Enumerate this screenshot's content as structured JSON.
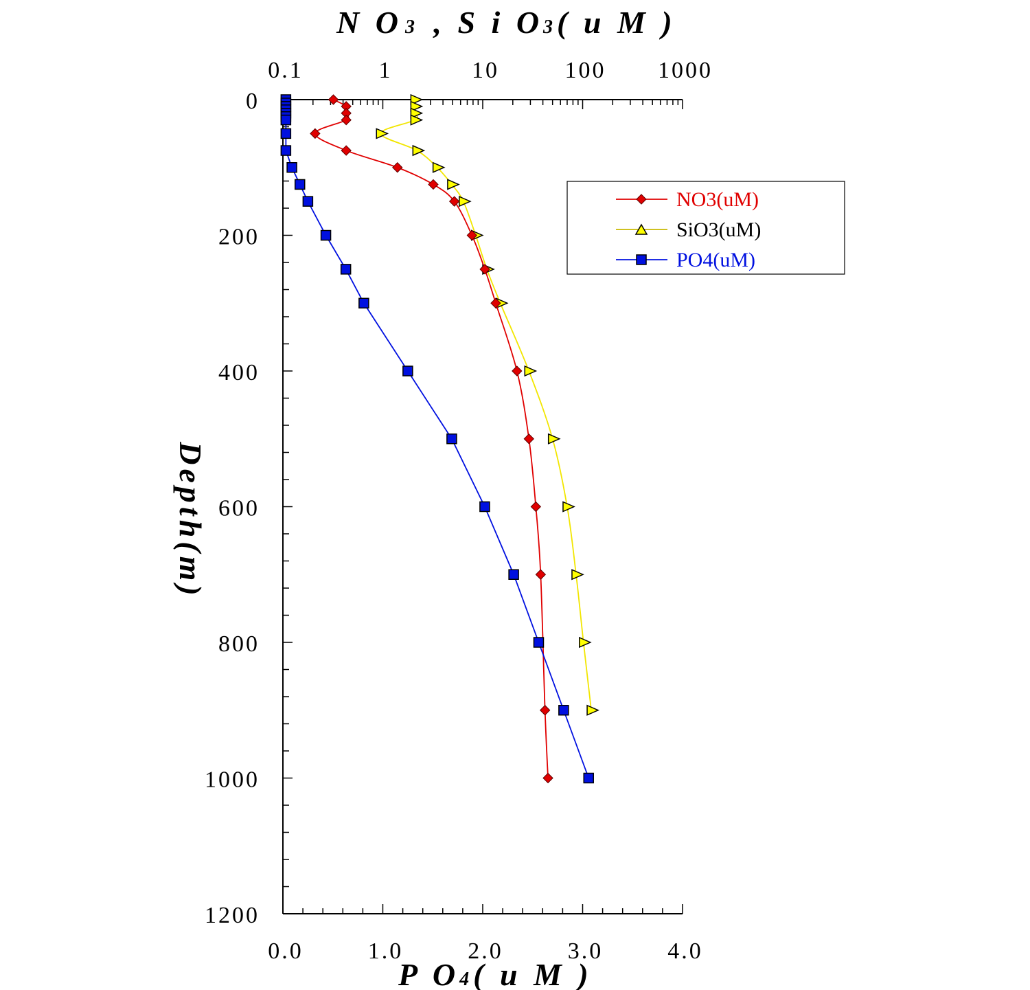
{
  "chart_data": {
    "type": "line",
    "top_axis": {
      "title_main_1": "N O",
      "title_sub_1": "3",
      "title_main_2": " , S i O",
      "title_sub_2": "3",
      "title_main_3": "( u M )",
      "scale": "log",
      "range": [
        0.1,
        1000
      ],
      "ticks": [
        {
          "value": 0.1,
          "label": "0.1"
        },
        {
          "value": 1,
          "label": "1"
        },
        {
          "value": 10,
          "label": "10"
        },
        {
          "value": 100,
          "label": "100"
        },
        {
          "value": 1000,
          "label": "1000"
        }
      ]
    },
    "bottom_axis": {
      "title_main_1": "P O",
      "title_sub_1": "4",
      "title_main_2": "( u M )",
      "scale": "linear",
      "range": [
        0,
        4
      ],
      "ticks": [
        {
          "value": 0,
          "label": "0.0"
        },
        {
          "value": 1,
          "label": "1.0"
        },
        {
          "value": 2,
          "label": "2.0"
        },
        {
          "value": 3,
          "label": "3.0"
        },
        {
          "value": 4,
          "label": "4.0"
        }
      ]
    },
    "y_axis": {
      "title": "Depth(m)",
      "range": [
        0,
        1200
      ],
      "inverted": true,
      "ticks": [
        {
          "value": 0,
          "label": "0"
        },
        {
          "value": 200,
          "label": "200"
        },
        {
          "value": 400,
          "label": "400"
        },
        {
          "value": 600,
          "label": "600"
        },
        {
          "value": 800,
          "label": "800"
        },
        {
          "value": 1000,
          "label": "1000"
        },
        {
          "value": 1200,
          "label": "1200"
        }
      ]
    },
    "legend": {
      "position": "top-right"
    },
    "series": [
      {
        "name": "NO3(uM)",
        "axis": "top",
        "color": "#e00000",
        "marker": "diamond",
        "points": [
          {
            "x": 0.32,
            "depth": 0
          },
          {
            "x": 0.43,
            "depth": 10
          },
          {
            "x": 0.43,
            "depth": 20
          },
          {
            "x": 0.43,
            "depth": 30
          },
          {
            "x": 0.21,
            "depth": 50
          },
          {
            "x": 0.43,
            "depth": 75
          },
          {
            "x": 1.4,
            "depth": 100
          },
          {
            "x": 3.2,
            "depth": 125
          },
          {
            "x": 5.2,
            "depth": 150
          },
          {
            "x": 7.8,
            "depth": 200
          },
          {
            "x": 10.5,
            "depth": 250
          },
          {
            "x": 13.5,
            "depth": 300
          },
          {
            "x": 22,
            "depth": 400
          },
          {
            "x": 29,
            "depth": 500
          },
          {
            "x": 34,
            "depth": 600
          },
          {
            "x": 38,
            "depth": 700
          },
          {
            "x": 42,
            "depth": 900
          },
          {
            "x": 45,
            "depth": 1000
          }
        ]
      },
      {
        "name": "SiO3(uM)",
        "axis": "top",
        "color": "#ffff00",
        "marker": "triangle",
        "points": [
          {
            "x": 2.1,
            "depth": 0
          },
          {
            "x": 2.1,
            "depth": 10
          },
          {
            "x": 2.1,
            "depth": 20
          },
          {
            "x": 2.1,
            "depth": 30
          },
          {
            "x": 0.95,
            "depth": 50
          },
          {
            "x": 2.2,
            "depth": 75
          },
          {
            "x": 3.5,
            "depth": 100
          },
          {
            "x": 4.9,
            "depth": 125
          },
          {
            "x": 6.4,
            "depth": 150
          },
          {
            "x": 8.5,
            "depth": 200
          },
          {
            "x": 11.0,
            "depth": 250
          },
          {
            "x": 15.0,
            "depth": 300
          },
          {
            "x": 29,
            "depth": 400
          },
          {
            "x": 50,
            "depth": 500
          },
          {
            "x": 70,
            "depth": 600
          },
          {
            "x": 86,
            "depth": 700
          },
          {
            "x": 102,
            "depth": 800
          },
          {
            "x": 122,
            "depth": 900
          }
        ]
      },
      {
        "name": "PO4(uM)",
        "axis": "bottom",
        "color": "#0010e0",
        "marker": "square",
        "points": [
          {
            "x": 0.03,
            "depth": 0
          },
          {
            "x": 0.03,
            "depth": 5
          },
          {
            "x": 0.03,
            "depth": 10
          },
          {
            "x": 0.03,
            "depth": 15
          },
          {
            "x": 0.03,
            "depth": 20
          },
          {
            "x": 0.03,
            "depth": 25
          },
          {
            "x": 0.03,
            "depth": 30
          },
          {
            "x": 0.03,
            "depth": 50
          },
          {
            "x": 0.03,
            "depth": 75
          },
          {
            "x": 0.09,
            "depth": 100
          },
          {
            "x": 0.17,
            "depth": 125
          },
          {
            "x": 0.25,
            "depth": 150
          },
          {
            "x": 0.43,
            "depth": 200
          },
          {
            "x": 0.63,
            "depth": 250
          },
          {
            "x": 0.81,
            "depth": 300
          },
          {
            "x": 1.25,
            "depth": 400
          },
          {
            "x": 1.69,
            "depth": 500
          },
          {
            "x": 2.02,
            "depth": 600
          },
          {
            "x": 2.31,
            "depth": 700
          },
          {
            "x": 2.56,
            "depth": 800
          },
          {
            "x": 2.81,
            "depth": 900
          },
          {
            "x": 3.06,
            "depth": 1000
          }
        ]
      }
    ]
  }
}
